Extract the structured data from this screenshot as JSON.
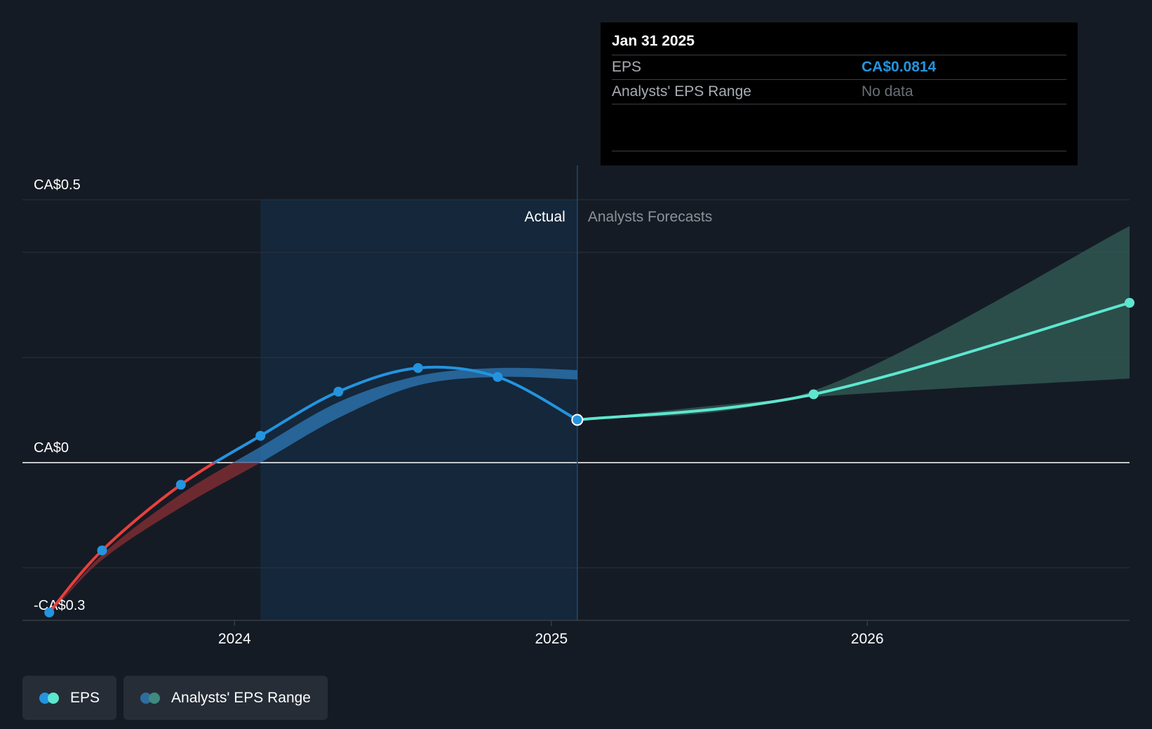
{
  "chart_data": {
    "type": "line",
    "y_axis": {
      "ylim": [
        -0.3,
        0.5
      ],
      "labels": [
        {
          "value": 0.5,
          "text": "CA$0.5"
        },
        {
          "value": 0,
          "text": "CA$0"
        },
        {
          "value": -0.3,
          "text": "-CA$0.3"
        }
      ],
      "gridlines": [
        0.5,
        0.4,
        0.2,
        0,
        -0.2,
        -0.3
      ]
    },
    "x_axis": {
      "xlim": [
        "2023-05-01",
        "2026-10-31"
      ],
      "ticks": [
        {
          "date": "2024-01-01",
          "label": "2024"
        },
        {
          "date": "2025-01-01",
          "label": "2025"
        },
        {
          "date": "2026-01-01",
          "label": "2026"
        }
      ]
    },
    "divider_date": "2025-01-31",
    "past_shade_start": "2024-01-31",
    "region_labels": {
      "actual": "Actual",
      "forecast": "Analysts Forecasts"
    },
    "series": [
      {
        "name": "EPS",
        "color": "#2394df",
        "negative_color": "#e8403e",
        "points": [
          {
            "date": "2023-06-01",
            "value": -0.285
          },
          {
            "date": "2023-08-01",
            "value": -0.167
          },
          {
            "date": "2023-10-31",
            "value": -0.042
          },
          {
            "date": "2024-01-31",
            "value": 0.051
          },
          {
            "date": "2024-04-30",
            "value": 0.135
          },
          {
            "date": "2024-07-31",
            "value": 0.18
          },
          {
            "date": "2024-10-31",
            "value": 0.163
          },
          {
            "date": "2025-01-31",
            "value": 0.0814
          }
        ]
      },
      {
        "name": "EPS Forecast",
        "color": "#5ee6cf",
        "points": [
          {
            "date": "2025-01-31",
            "value": 0.0814
          },
          {
            "date": "2025-10-31",
            "value": 0.13
          },
          {
            "date": "2026-10-31",
            "value": 0.304
          }
        ]
      }
    ],
    "past_range_band": {
      "color": "#2d7ab8",
      "negative_color": "#7c2b32",
      "points": [
        {
          "date": "2023-06-01",
          "low": -0.29,
          "high": -0.29
        },
        {
          "date": "2023-08-01",
          "low": -0.185,
          "high": -0.175
        },
        {
          "date": "2023-10-31",
          "low": -0.085,
          "high": -0.06
        },
        {
          "date": "2024-01-31",
          "low": 0.0,
          "high": 0.03
        },
        {
          "date": "2024-04-30",
          "low": 0.085,
          "high": 0.115
        },
        {
          "date": "2024-07-31",
          "low": 0.147,
          "high": 0.165
        },
        {
          "date": "2024-10-31",
          "low": 0.163,
          "high": 0.18
        },
        {
          "date": "2025-01-31",
          "low": 0.158,
          "high": 0.176
        }
      ]
    },
    "forecast_range_band": {
      "color": "#2f5752",
      "points": [
        {
          "date": "2025-01-31",
          "low": 0.0814,
          "high": 0.0814
        },
        {
          "date": "2025-10-31",
          "low": 0.125,
          "high": 0.137
        },
        {
          "date": "2026-10-31",
          "low": 0.16,
          "high": 0.45
        }
      ]
    }
  },
  "tooltip": {
    "date": "Jan 31 2025",
    "eps_label": "EPS",
    "eps_value": "CA$0.0814",
    "range_label": "Analysts' EPS Range",
    "range_value": "No data"
  },
  "legend": {
    "items": [
      {
        "label": "EPS",
        "colors": [
          "#2394df",
          "#5ee6cf"
        ]
      },
      {
        "label": "Analysts' EPS Range",
        "colors": [
          "#2d6e9e",
          "#3f8a7f"
        ]
      }
    ]
  }
}
